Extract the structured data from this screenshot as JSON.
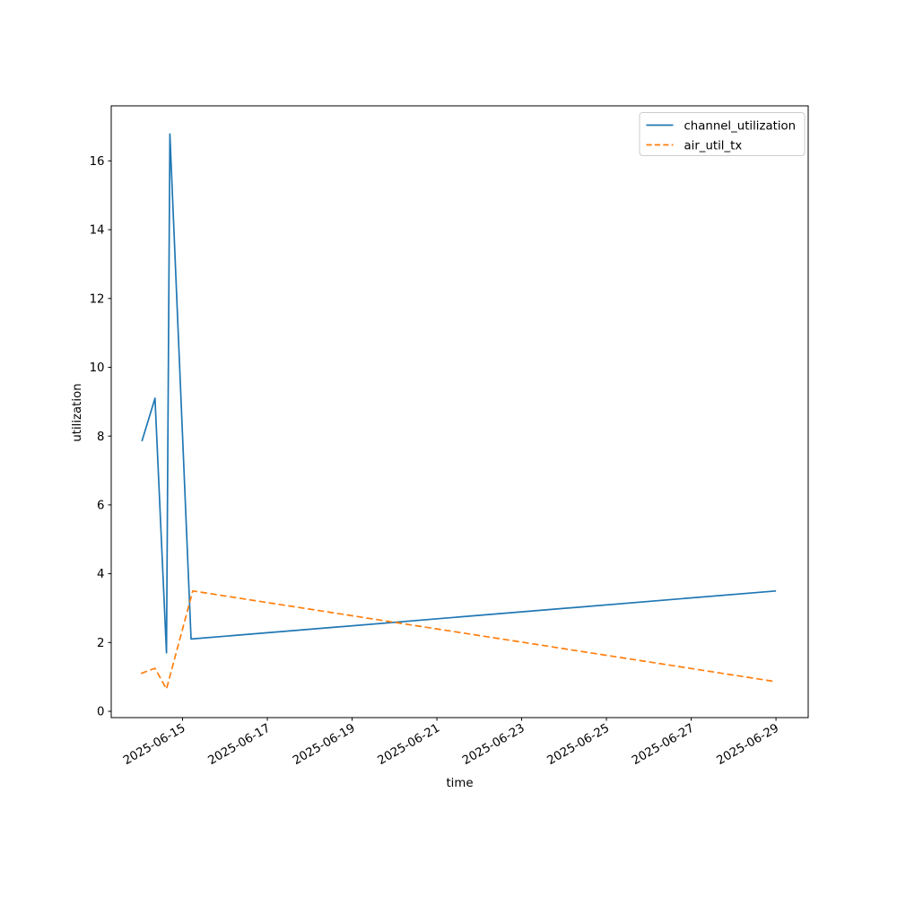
{
  "chart_data": {
    "type": "line",
    "title": "",
    "xlabel": "time",
    "ylabel": "utilization",
    "x_unit_note": "x values in series points are days relative to 2025-06-15 00:00",
    "xlim": [
      -1.683,
      14.76
    ],
    "ylim": [
      -0.183,
      17.6
    ],
    "grid": false,
    "legend_position": "upper right",
    "x_ticks": [
      {
        "value": 0,
        "label": "2025-06-15"
      },
      {
        "value": 2,
        "label": "2025-06-17"
      },
      {
        "value": 4,
        "label": "2025-06-19"
      },
      {
        "value": 6,
        "label": "2025-06-21"
      },
      {
        "value": 8,
        "label": "2025-06-23"
      },
      {
        "value": 10,
        "label": "2025-06-25"
      },
      {
        "value": 12,
        "label": "2025-06-27"
      },
      {
        "value": 14,
        "label": "2025-06-29"
      }
    ],
    "y_ticks": [
      0,
      2,
      4,
      6,
      8,
      10,
      12,
      14,
      16
    ],
    "series": [
      {
        "name": "channel_utilization",
        "color": "#1f77b4",
        "style": "solid",
        "points": [
          [
            -0.96,
            7.85
          ],
          [
            -0.65,
            9.1
          ],
          [
            -0.38,
            1.7
          ],
          [
            -0.3,
            16.78
          ],
          [
            0.2,
            2.1
          ],
          [
            14.0,
            3.5
          ]
        ]
      },
      {
        "name": "air_util_tx",
        "color": "#ff7f0e",
        "style": "dashed",
        "points": [
          [
            -0.98,
            1.1
          ],
          [
            -0.65,
            1.25
          ],
          [
            -0.38,
            0.65
          ],
          [
            0.24,
            3.5
          ],
          [
            13.95,
            0.87
          ]
        ]
      }
    ]
  }
}
